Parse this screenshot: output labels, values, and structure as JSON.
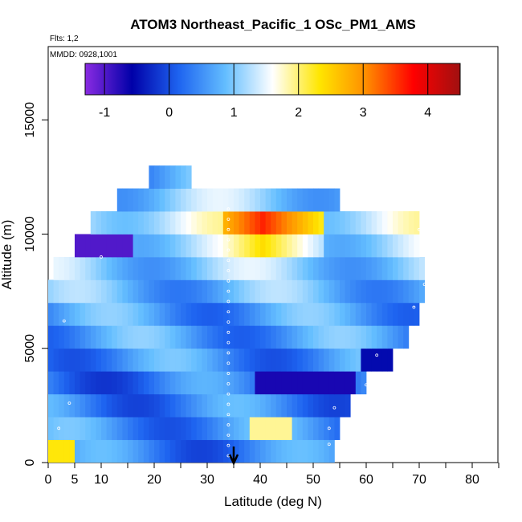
{
  "chart_data": {
    "type": "heatmap",
    "title": "ATOM3 Northeast_Pacific_1 OSc_PM1_AMS",
    "flights_note": "Flts: 1,2",
    "date_note": "MMDD: 0928,1001",
    "xlabel": "Latitude (deg N)",
    "ylabel": "Altitude (m)",
    "xlim": [
      0,
      85
    ],
    "ylim": [
      0,
      18000
    ],
    "x_ticks": [
      0,
      5,
      10,
      20,
      30,
      40,
      50,
      60,
      70,
      80
    ],
    "y_ticks": [
      0,
      5000,
      10000,
      15000
    ],
    "colorbar": {
      "range": [
        -1.3,
        4.5
      ],
      "ticks": [
        -1,
        0,
        1,
        2,
        3,
        4
      ],
      "colors": [
        "#8a2be2",
        "#0000a8",
        "#1e64f0",
        "#64beff",
        "#ffffff",
        "#ffe600",
        "#ff8c00",
        "#ff0000",
        "#a01010"
      ]
    },
    "marker": {
      "type": "arrow",
      "x": 35
    },
    "field_description": "binned altitude-latitude curtain of organic aerosol index",
    "cells": [
      {
        "alt": 500,
        "lat_range": [
          0,
          54
        ],
        "value": 0.4
      },
      {
        "alt": 1500,
        "lat_range": [
          0,
          55
        ],
        "value": 0.5
      },
      {
        "alt": 2500,
        "lat_range": [
          0,
          57
        ],
        "value": 0.4
      },
      {
        "alt": 3500,
        "lat_range": [
          0,
          60
        ],
        "value": 0.3
      },
      {
        "alt": 4500,
        "lat_range": [
          0,
          65
        ],
        "value": 0.5
      },
      {
        "alt": 5500,
        "lat_range": [
          0,
          68
        ],
        "value": 0.6
      },
      {
        "alt": 6500,
        "lat_range": [
          0,
          70
        ],
        "value": 0.6
      },
      {
        "alt": 7500,
        "lat_range": [
          0,
          71
        ],
        "value": 0.8
      },
      {
        "alt": 8500,
        "lat_range": [
          1,
          71
        ],
        "value": 1.0
      },
      {
        "alt": 9500,
        "lat_range": [
          5,
          70
        ],
        "value": 1.2
      },
      {
        "alt": 10500,
        "lat_range": [
          8,
          70
        ],
        "value": 1.4
      },
      {
        "alt": 11500,
        "lat_range": [
          13,
          55
        ],
        "value": 1.0
      },
      {
        "alt": 12500,
        "lat_range": [
          19,
          27
        ],
        "value": 0.7
      }
    ]
  }
}
